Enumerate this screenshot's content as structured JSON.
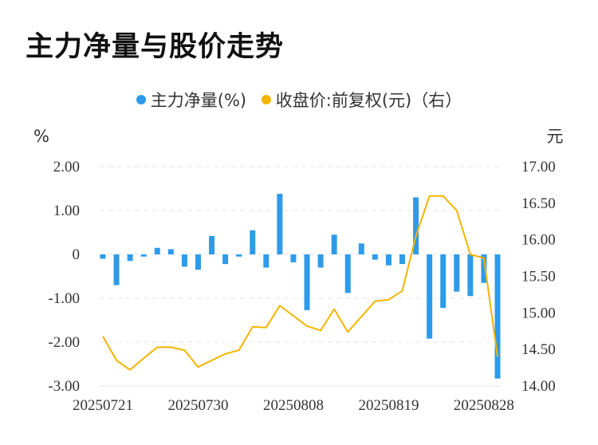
{
  "chart_data": {
    "type": "bar+line",
    "title": "主力净量与股价走势",
    "legend": [
      {
        "name": "主力净量(%)",
        "color": "#2e9bea"
      },
      {
        "name": "收盘价:前复权(元)（右）",
        "color": "#f5b400"
      }
    ],
    "y_left": {
      "unit": "%",
      "ticks": [
        "2.00",
        "1.00",
        "0",
        "-1.00",
        "-2.00",
        "-3.00"
      ],
      "range": [
        -3,
        2
      ]
    },
    "y_right": {
      "unit": "元",
      "ticks": [
        "17.00",
        "16.50",
        "16.00",
        "15.50",
        "15.00",
        "14.50",
        "14.00"
      ],
      "range": [
        14,
        17
      ]
    },
    "x_tick_labels": [
      "20250721",
      "20250730",
      "20250808",
      "20250819",
      "20250828"
    ],
    "x_tick_index": [
      0,
      7,
      14,
      21,
      28
    ],
    "dates": [
      "20250721",
      "20250722",
      "20250723",
      "20250724",
      "20250725",
      "20250728",
      "20250729",
      "20250730",
      "20250731",
      "20250801",
      "20250804",
      "20250805",
      "20250806",
      "20250807",
      "20250808",
      "20250811",
      "20250812",
      "20250813",
      "20250814",
      "20250815",
      "20250818",
      "20250819",
      "20250820",
      "20250821",
      "20250822",
      "20250825",
      "20250826",
      "20250827",
      "20250828",
      "20250829"
    ],
    "series": [
      {
        "name": "主力净量(%)",
        "type": "bar",
        "axis": "left",
        "color": "#2e9bea",
        "values": [
          -0.1,
          -0.7,
          -0.15,
          -0.05,
          0.15,
          0.12,
          -0.28,
          -0.35,
          0.42,
          -0.22,
          -0.05,
          0.55,
          -0.3,
          1.38,
          -0.18,
          -1.27,
          -0.3,
          0.45,
          -0.88,
          0.25,
          -0.12,
          -0.25,
          -0.22,
          1.3,
          -1.92,
          -1.22,
          -0.85,
          -0.95,
          -0.65,
          -2.83
        ]
      },
      {
        "name": "收盘价:前复权(元)",
        "type": "line",
        "axis": "right",
        "color": "#f5b400",
        "values": [
          14.68,
          14.35,
          14.22,
          14.38,
          14.53,
          14.53,
          14.49,
          14.26,
          14.35,
          14.44,
          14.49,
          14.81,
          14.8,
          15.1,
          14.96,
          14.82,
          14.76,
          15.05,
          14.74,
          14.95,
          15.16,
          15.18,
          15.3,
          16.05,
          16.6,
          16.6,
          16.4,
          15.8,
          15.75,
          14.4
        ]
      }
    ]
  }
}
